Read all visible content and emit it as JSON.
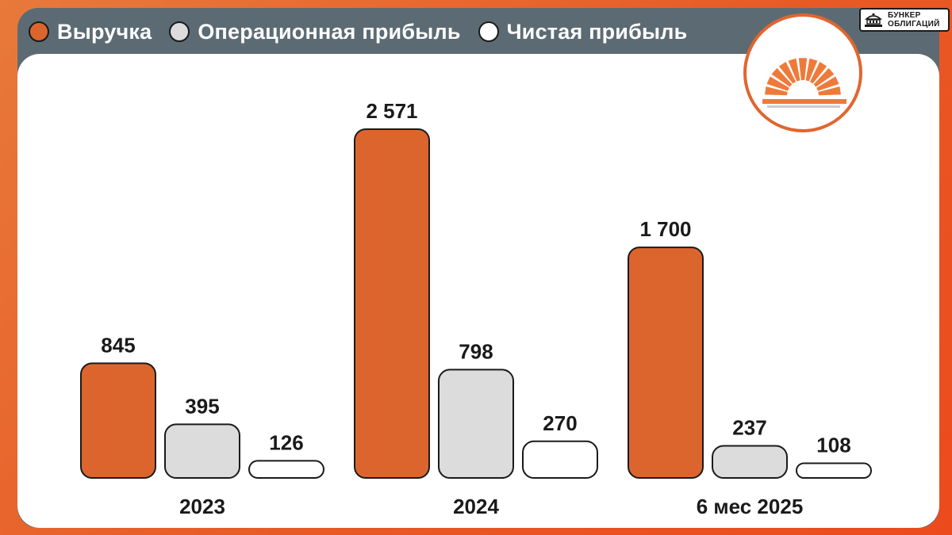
{
  "legend": [
    {
      "label": "Выручка",
      "color": "#dc652e"
    },
    {
      "label": "Операционная прибыль",
      "color": "#dcdcdc"
    },
    {
      "label": "Чистая прибыль",
      "color": "#ffffff"
    }
  ],
  "brand": {
    "line1": "БУНКЕР",
    "line2": "ОБЛИГАЦИЙ",
    "icon": "building-icon"
  },
  "logo": {
    "icon": "sunrise-fan-icon",
    "color": "#ee7a3a"
  },
  "chart_data": {
    "type": "bar",
    "categories": [
      "2023",
      "2024",
      "6 мес 2025"
    ],
    "series": [
      {
        "name": "Выручка",
        "values": [
          845,
          2571,
          1700
        ],
        "labels": [
          "845",
          "2 571",
          "1 700"
        ],
        "color": "#dc652e"
      },
      {
        "name": "Операционная прибыль",
        "values": [
          395,
          798,
          237
        ],
        "labels": [
          "395",
          "798",
          "237"
        ],
        "color": "#dcdcdc"
      },
      {
        "name": "Чистая прибыль",
        "values": [
          126,
          270,
          108
        ],
        "labels": [
          "126",
          "270",
          "108"
        ],
        "color": "#ffffff"
      }
    ],
    "ylim": [
      0,
      2571
    ],
    "grid": false,
    "legend_position": "top-left"
  }
}
